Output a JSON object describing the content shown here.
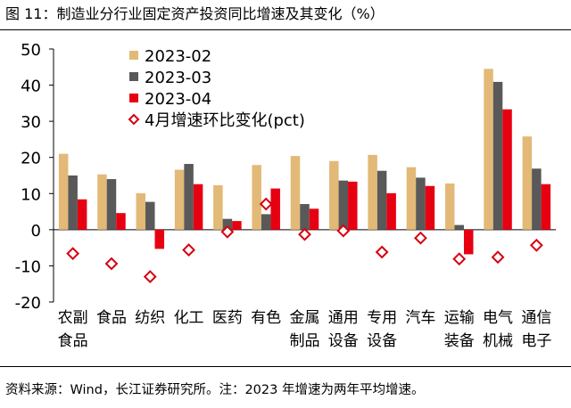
{
  "figure_title": "图 11：制造业分行业固定资产投资同比增速及其变化（%）",
  "source_note": "资料来源：Wind，长江证券研究所。注：2023 年增速为两年平均增速。",
  "colors": {
    "2023-02": "#E2B977",
    "2023-03": "#595959",
    "2023-04": "#E60012",
    "diff_marker": "#D7000F"
  },
  "chart_data": {
    "type": "bar",
    "categories": [
      [
        "农副",
        "食品"
      ],
      [
        "食品"
      ],
      [
        "纺织"
      ],
      [
        "化工"
      ],
      [
        "医药"
      ],
      [
        "有色"
      ],
      [
        "金属",
        "制品"
      ],
      [
        "通用",
        "设备"
      ],
      [
        "专用",
        "设备"
      ],
      [
        "汽车"
      ],
      [
        "运输",
        "装备"
      ],
      [
        "电气",
        "机械"
      ],
      [
        "通信",
        "电子"
      ]
    ],
    "series": [
      {
        "name": "2023-02",
        "kind": "bar",
        "values": [
          21.0,
          15.3,
          10.1,
          16.6,
          12.3,
          17.9,
          20.4,
          19.0,
          20.7,
          17.3,
          12.8,
          44.5,
          25.8
        ]
      },
      {
        "name": "2023-03",
        "kind": "bar",
        "values": [
          15.0,
          14.0,
          7.7,
          18.2,
          3.0,
          4.3,
          7.1,
          13.6,
          16.3,
          14.4,
          1.3,
          40.9,
          16.9
        ]
      },
      {
        "name": "2023-04",
        "kind": "bar",
        "values": [
          8.4,
          4.6,
          -5.3,
          12.6,
          2.4,
          11.4,
          5.8,
          13.3,
          10.1,
          12.1,
          -6.8,
          33.3,
          12.6
        ]
      },
      {
        "name": "4月增速环比变化(pct)",
        "kind": "marker",
        "values": [
          -6.6,
          -9.4,
          -13.0,
          -5.6,
          -0.6,
          7.1,
          -1.3,
          -0.3,
          -6.2,
          -2.3,
          -8.1,
          -7.6,
          -4.3
        ]
      }
    ],
    "xlabel": "",
    "ylabel": "",
    "ylim": [
      -20,
      50
    ],
    "yticks": [
      -20,
      -10,
      0,
      10,
      20,
      30,
      40,
      50
    ],
    "grid": false,
    "legend_position": "top-left"
  }
}
